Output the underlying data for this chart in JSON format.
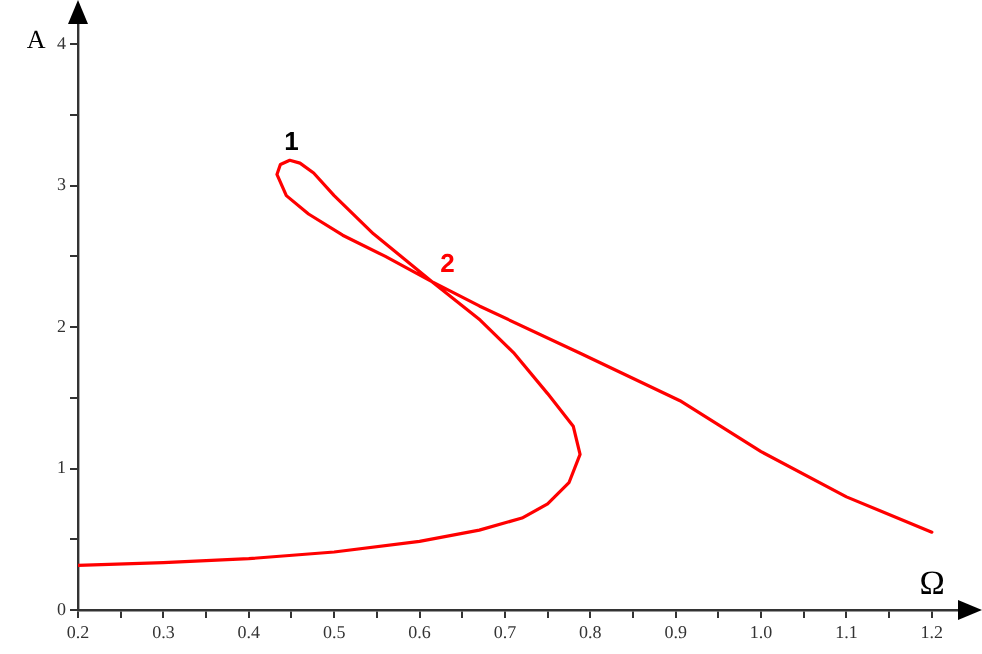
{
  "chart_data": {
    "type": "line",
    "xlabel": "Ω",
    "ylabel": "A",
    "series": [
      {
        "color": "#ff0000",
        "x": [
          0.2,
          0.3,
          0.4,
          0.5,
          0.6,
          0.67,
          0.72,
          0.75,
          0.775,
          0.788,
          0.78,
          0.75,
          0.71,
          0.671,
          0.615,
          0.546,
          0.5,
          0.476,
          0.46,
          0.448,
          0.437,
          0.433,
          0.444,
          0.47,
          0.51,
          0.56,
          0.615,
          0.67,
          0.79,
          0.905,
          1.0,
          1.1,
          1.2
        ],
        "values": [
          0.315,
          0.335,
          0.363,
          0.41,
          0.485,
          0.565,
          0.65,
          0.75,
          0.9,
          1.1,
          1.3,
          1.53,
          1.82,
          2.05,
          2.32,
          2.66,
          2.93,
          3.09,
          3.16,
          3.18,
          3.15,
          3.08,
          2.93,
          2.8,
          2.65,
          2.5,
          2.32,
          2.15,
          1.81,
          1.48,
          1.12,
          0.8,
          0.55
        ]
      }
    ],
    "annotations": [
      {
        "text": "1",
        "x": 0.45,
        "y": 3.18
      },
      {
        "text": "2",
        "x": 0.615,
        "y": 2.32
      }
    ],
    "xlim": [
      0.2,
      1.24
    ],
    "ylim": [
      0,
      4.2
    ],
    "xticks": [
      0.2,
      {
        "value": 0.25,
        "label": null
      },
      0.3,
      {
        "value": 0.35,
        "label": null
      },
      0.4,
      {
        "value": 0.45,
        "label": null
      },
      0.5,
      {
        "value": 0.55,
        "label": null
      },
      0.6,
      {
        "value": 0.65,
        "label": null
      },
      0.7,
      {
        "value": 0.75,
        "label": null
      },
      0.8,
      {
        "value": 0.85,
        "label": null
      },
      0.9,
      {
        "value": 0.95,
        "label": null
      },
      {
        "value": 1.0,
        "label": "1.0"
      },
      {
        "value": 1.05,
        "label": null
      },
      1.1,
      {
        "value": 1.15,
        "label": null
      },
      1.2
    ],
    "yticks": [
      0,
      {
        "value": 0.5,
        "label": null
      },
      1,
      {
        "value": 1.5,
        "label": null
      },
      2,
      {
        "value": 2.5,
        "label": null
      },
      3,
      {
        "value": 3.5,
        "label": null
      },
      4
    ],
    "grid": false,
    "legend": false,
    "marker": "none",
    "line_style": "solid"
  }
}
